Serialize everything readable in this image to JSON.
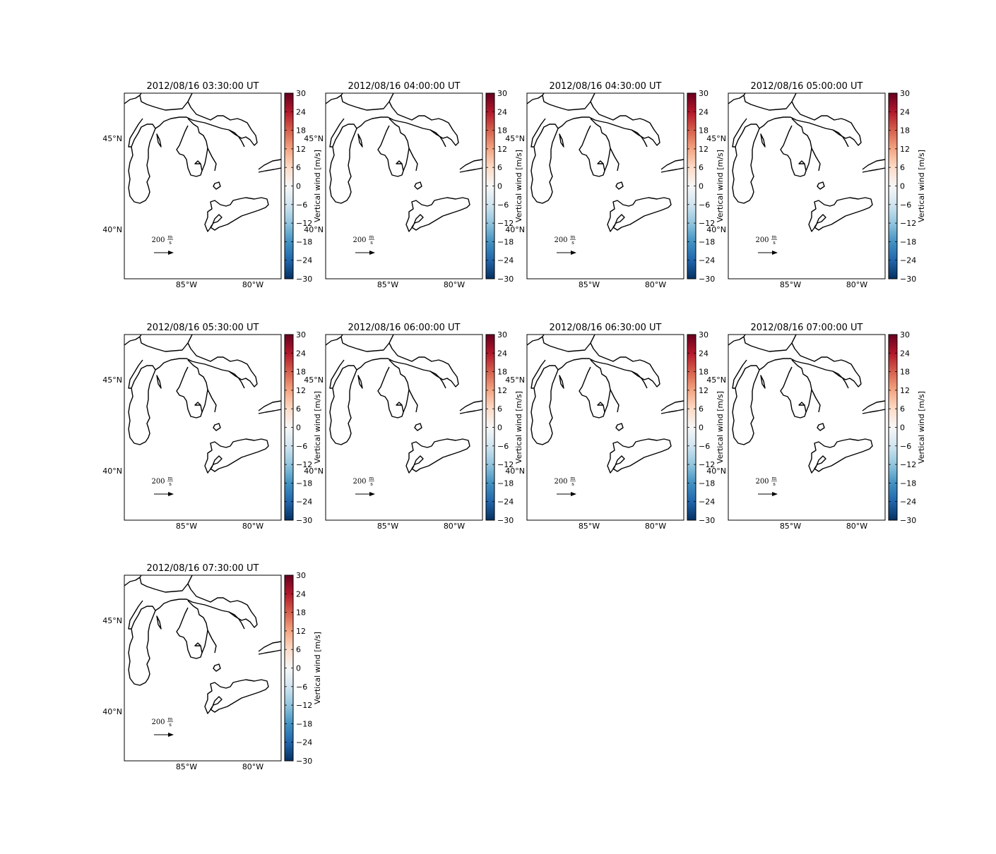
{
  "figure": {
    "panels": [
      {
        "title": "2012/08/16 03:30:00 UT"
      },
      {
        "title": "2012/08/16 04:00:00 UT"
      },
      {
        "title": "2012/08/16 04:30:00 UT"
      },
      {
        "title": "2012/08/16 05:00:00 UT"
      },
      {
        "title": "2012/08/16 05:30:00 UT"
      },
      {
        "title": "2012/08/16 06:00:00 UT"
      },
      {
        "title": "2012/08/16 06:30:00 UT"
      },
      {
        "title": "2012/08/16 07:00:00 UT"
      },
      {
        "title": "2012/08/16 07:30:00 UT"
      }
    ],
    "lat_ticks": [
      "45°N",
      "40°N"
    ],
    "lon_ticks": [
      "85°W",
      "80°W"
    ],
    "colorbar": {
      "label": "Vertical wind [m/s]",
      "ticks": [
        "30",
        "24",
        "18",
        "12",
        "6",
        "0",
        "−6",
        "−12",
        "−18",
        "−24",
        "−30"
      ],
      "colors": [
        "#67001f",
        "#b2182b",
        "#d6604d",
        "#f4a582",
        "#fddbc7",
        "#f7f7f7",
        "#d1e5f0",
        "#92c5de",
        "#4393c3",
        "#2166ac",
        "#053061"
      ]
    },
    "quiver_key": {
      "value": "200",
      "unit_num": "m",
      "unit_den": "s"
    }
  }
}
